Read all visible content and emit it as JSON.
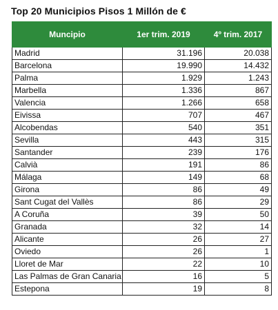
{
  "title": "Top 20 Municipios Pisos 1 Millón de €",
  "table": {
    "headers": [
      "Muncipio",
      "1er trim. 2019",
      "4º trim. 2017"
    ],
    "rows": [
      [
        "Madrid",
        "31.196",
        "20.038"
      ],
      [
        "Barcelona",
        "19.990",
        "14.432"
      ],
      [
        "Palma",
        "1.929",
        "1.243"
      ],
      [
        "Marbella",
        "1.336",
        "867"
      ],
      [
        "Valencia",
        "1.266",
        "658"
      ],
      [
        "Eivissa",
        "707",
        "467"
      ],
      [
        "Alcobendas",
        "540",
        "351"
      ],
      [
        "Sevilla",
        "443",
        "315"
      ],
      [
        "Santander",
        "239",
        "176"
      ],
      [
        "Calvià",
        "191",
        "86"
      ],
      [
        "Málaga",
        "149",
        "68"
      ],
      [
        "Girona",
        "86",
        "49"
      ],
      [
        "Sant Cugat del Vallès",
        "86",
        "29"
      ],
      [
        "A Coruña",
        "39",
        "50"
      ],
      [
        "Granada",
        "32",
        "14"
      ],
      [
        "Alicante",
        "26",
        "27"
      ],
      [
        "Oviedo",
        "26",
        "1"
      ],
      [
        "Lloret de Mar",
        "22",
        "10"
      ],
      [
        "Las Palmas de Gran Canaria",
        "16",
        "5"
      ],
      [
        "Estepona",
        "19",
        "8"
      ]
    ]
  }
}
